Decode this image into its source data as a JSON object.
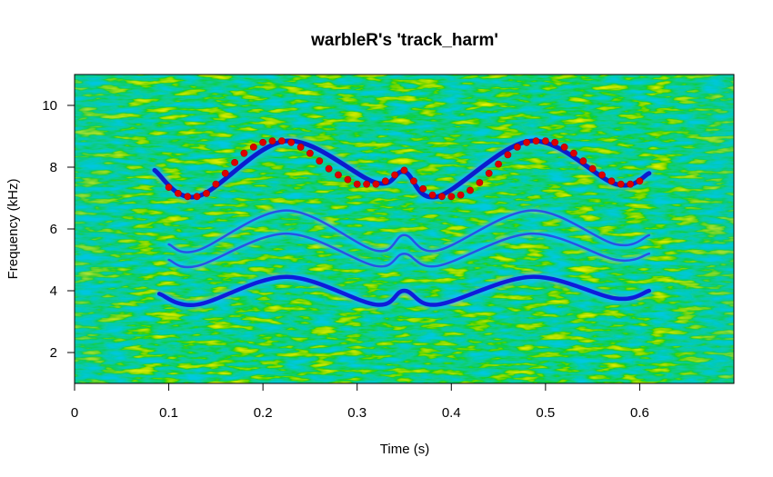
{
  "chart_data": {
    "type": "scatter",
    "title": "warbleR's 'track_harm'",
    "xlabel": "Time (s)",
    "ylabel": "Frequency (kHz)",
    "xlim": [
      0,
      0.7
    ],
    "ylim": [
      1,
      11
    ],
    "x_ticks": [
      "0",
      "0.1",
      "0.2",
      "0.3",
      "0.4",
      "0.5",
      "0.6"
    ],
    "y_ticks": [
      "2",
      "4",
      "6",
      "8",
      "10"
    ],
    "background": "spectrogram",
    "harmonic_bands": [
      {
        "x": [
          0.09,
          0.13,
          0.225,
          0.32,
          0.35,
          0.385,
          0.485,
          0.575,
          0.61
        ],
        "y": [
          3.9,
          3.55,
          4.45,
          3.55,
          4.0,
          3.55,
          4.45,
          3.75,
          4.0
        ]
      },
      {
        "x": [
          0.1,
          0.13,
          0.225,
          0.32,
          0.35,
          0.385,
          0.485,
          0.575,
          0.61
        ],
        "y": [
          5.0,
          4.8,
          5.85,
          4.8,
          5.2,
          4.8,
          5.85,
          5.0,
          5.2
        ]
      },
      {
        "x": [
          0.1,
          0.13,
          0.225,
          0.32,
          0.35,
          0.385,
          0.485,
          0.575,
          0.61
        ],
        "y": [
          5.5,
          5.3,
          6.6,
          5.3,
          5.8,
          5.3,
          6.6,
          5.5,
          5.8
        ]
      },
      {
        "x": [
          0.085,
          0.13,
          0.225,
          0.32,
          0.35,
          0.385,
          0.485,
          0.575,
          0.61
        ],
        "y": [
          7.9,
          7.05,
          8.85,
          7.5,
          7.85,
          7.05,
          8.85,
          7.45,
          7.8
        ]
      }
    ],
    "series": [
      {
        "color": "#dd0000",
        "x": [
          0.1,
          0.11,
          0.12,
          0.13,
          0.14,
          0.15,
          0.16,
          0.17,
          0.18,
          0.19,
          0.2,
          0.21,
          0.22,
          0.23,
          0.24,
          0.25,
          0.26,
          0.27,
          0.28,
          0.29,
          0.3,
          0.31,
          0.32,
          0.33,
          0.34,
          0.35,
          0.36,
          0.37,
          0.38,
          0.39,
          0.4,
          0.41,
          0.42,
          0.43,
          0.44,
          0.45,
          0.46,
          0.47,
          0.48,
          0.49,
          0.5,
          0.51,
          0.52,
          0.53,
          0.54,
          0.55,
          0.56,
          0.57,
          0.58,
          0.59,
          0.6
        ],
        "y": [
          7.35,
          7.15,
          7.05,
          7.05,
          7.15,
          7.45,
          7.8,
          8.15,
          8.45,
          8.65,
          8.8,
          8.85,
          8.85,
          8.8,
          8.65,
          8.45,
          8.2,
          7.95,
          7.75,
          7.6,
          7.45,
          7.45,
          7.45,
          7.55,
          7.75,
          7.9,
          7.55,
          7.3,
          7.1,
          7.05,
          7.05,
          7.1,
          7.25,
          7.5,
          7.8,
          8.1,
          8.4,
          8.65,
          8.8,
          8.85,
          8.85,
          8.8,
          8.65,
          8.45,
          8.2,
          7.95,
          7.75,
          7.55,
          7.45,
          7.45,
          7.55
        ]
      }
    ]
  }
}
